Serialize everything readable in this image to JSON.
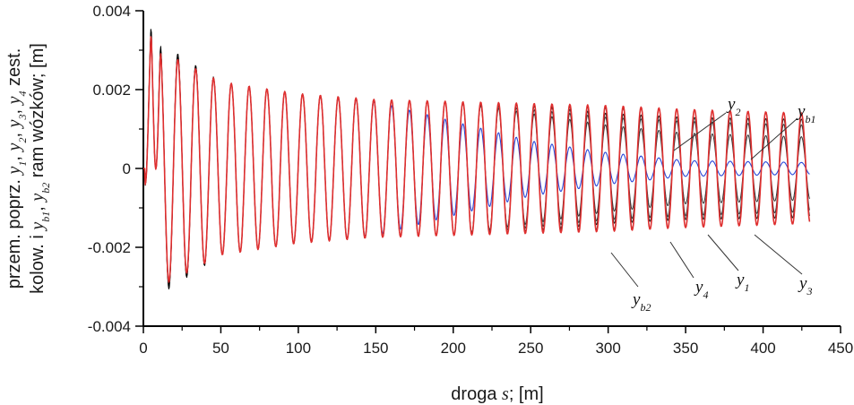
{
  "chart_data": {
    "type": "line",
    "title": "",
    "xlabel_parts": {
      "pre": "droga ",
      "var": "s",
      "post": "; [m]"
    },
    "ylabel_lines": [
      {
        "parts": [
          [
            "przem. poprz. ",
            ""
          ],
          [
            "y",
            "i"
          ],
          [
            "1",
            "sub"
          ],
          [
            ", ",
            ""
          ],
          [
            "y",
            "i"
          ],
          [
            "2",
            "sub"
          ],
          [
            ", ",
            ""
          ],
          [
            "y",
            "i"
          ],
          [
            "3",
            "sub"
          ],
          [
            ", ",
            ""
          ],
          [
            "y",
            "i"
          ],
          [
            "4",
            "sub"
          ],
          [
            " zest.",
            ""
          ]
        ]
      },
      {
        "parts": [
          [
            "kolow. i ",
            ""
          ],
          [
            "y",
            "i"
          ],
          [
            "b1",
            "sub"
          ],
          [
            ", ",
            ""
          ],
          [
            "y",
            "i"
          ],
          [
            "b2",
            "sub"
          ],
          [
            " ram wózków; [m]",
            ""
          ]
        ]
      }
    ],
    "xlim": [
      0,
      450
    ],
    "ylim": [
      -0.004,
      0.004
    ],
    "x_ticks": [
      "0",
      "50",
      "100",
      "150",
      "200",
      "250",
      "300",
      "350",
      "400",
      "450"
    ],
    "y_ticks": [
      "-0.004",
      "-0.002",
      "0",
      "0.002",
      "0.004"
    ],
    "grid": false,
    "series": [
      {
        "name": "y1",
        "color": "#000000",
        "period": 11.5,
        "points": [
          [
            0,
            0
          ],
          [
            5,
            -0.0037
          ],
          [
            11,
            0.0032
          ],
          [
            50,
            0.0022
          ],
          [
            100,
            0.0019
          ],
          [
            150,
            0.00175
          ],
          [
            200,
            0.0017
          ],
          [
            250,
            0.0016
          ],
          [
            300,
            0.00155
          ],
          [
            350,
            0.0015
          ],
          [
            430,
            0.0014
          ]
        ]
      },
      {
        "name": "y2",
        "color": "#333333",
        "period": 11.5,
        "points": [
          [
            0,
            0
          ],
          [
            5,
            -0.0036
          ],
          [
            11,
            0.0031
          ],
          [
            50,
            0.0022
          ],
          [
            100,
            0.0019
          ],
          [
            150,
            0.00175
          ],
          [
            200,
            0.0017
          ],
          [
            250,
            0.0014
          ],
          [
            300,
            0.0011
          ],
          [
            350,
            0.0009
          ],
          [
            430,
            0.0008
          ]
        ]
      },
      {
        "name": "y3",
        "color": "#444444",
        "period": 11.5,
        "points": [
          [
            0,
            0
          ],
          [
            5,
            -0.0036
          ],
          [
            11,
            0.0031
          ],
          [
            50,
            0.0022
          ],
          [
            100,
            0.0019
          ],
          [
            150,
            0.00175
          ],
          [
            200,
            0.0017
          ],
          [
            250,
            0.0015
          ],
          [
            300,
            0.0013
          ],
          [
            350,
            0.0012
          ],
          [
            430,
            0.0011
          ]
        ]
      },
      {
        "name": "y4",
        "color": "#222222",
        "period": 11.5,
        "points": [
          [
            0,
            0
          ],
          [
            5,
            -0.0036
          ],
          [
            11,
            0.0031
          ],
          [
            50,
            0.0022
          ],
          [
            100,
            0.0019
          ],
          [
            150,
            0.00175
          ],
          [
            200,
            0.0017
          ],
          [
            250,
            0.0016
          ],
          [
            300,
            0.0014
          ],
          [
            350,
            0.0013
          ],
          [
            430,
            0.00125
          ]
        ]
      },
      {
        "name": "yb1",
        "color": "#e03030",
        "period": 11.5,
        "points": [
          [
            0,
            0
          ],
          [
            5,
            -0.0035
          ],
          [
            11,
            0.003
          ],
          [
            50,
            0.0022
          ],
          [
            100,
            0.0019
          ],
          [
            150,
            0.00175
          ],
          [
            200,
            0.0017
          ],
          [
            250,
            0.00165
          ],
          [
            300,
            0.0016
          ],
          [
            350,
            0.0015
          ],
          [
            430,
            0.0014
          ]
        ]
      },
      {
        "name": "yb2",
        "color": "#2a48d8",
        "period": 11.5,
        "points": [
          [
            0,
            0
          ],
          [
            5,
            -0.0035
          ],
          [
            11,
            0.003
          ],
          [
            50,
            0.0022
          ],
          [
            100,
            0.0019
          ],
          [
            150,
            0.0017
          ],
          [
            200,
            0.0012
          ],
          [
            250,
            0.0007
          ],
          [
            300,
            0.0004
          ],
          [
            350,
            0.0002
          ],
          [
            430,
            0.00015
          ]
        ]
      }
    ],
    "annotations": [
      {
        "series": "y2",
        "base": "y",
        "sub": "2"
      },
      {
        "series": "yb1",
        "base": "y",
        "sub": "b1"
      },
      {
        "series": "y3",
        "base": "y",
        "sub": "3"
      },
      {
        "series": "y1",
        "base": "y",
        "sub": "1"
      },
      {
        "series": "y4",
        "base": "y",
        "sub": "4"
      },
      {
        "series": "yb2",
        "base": "y",
        "sub": "b2"
      }
    ]
  }
}
